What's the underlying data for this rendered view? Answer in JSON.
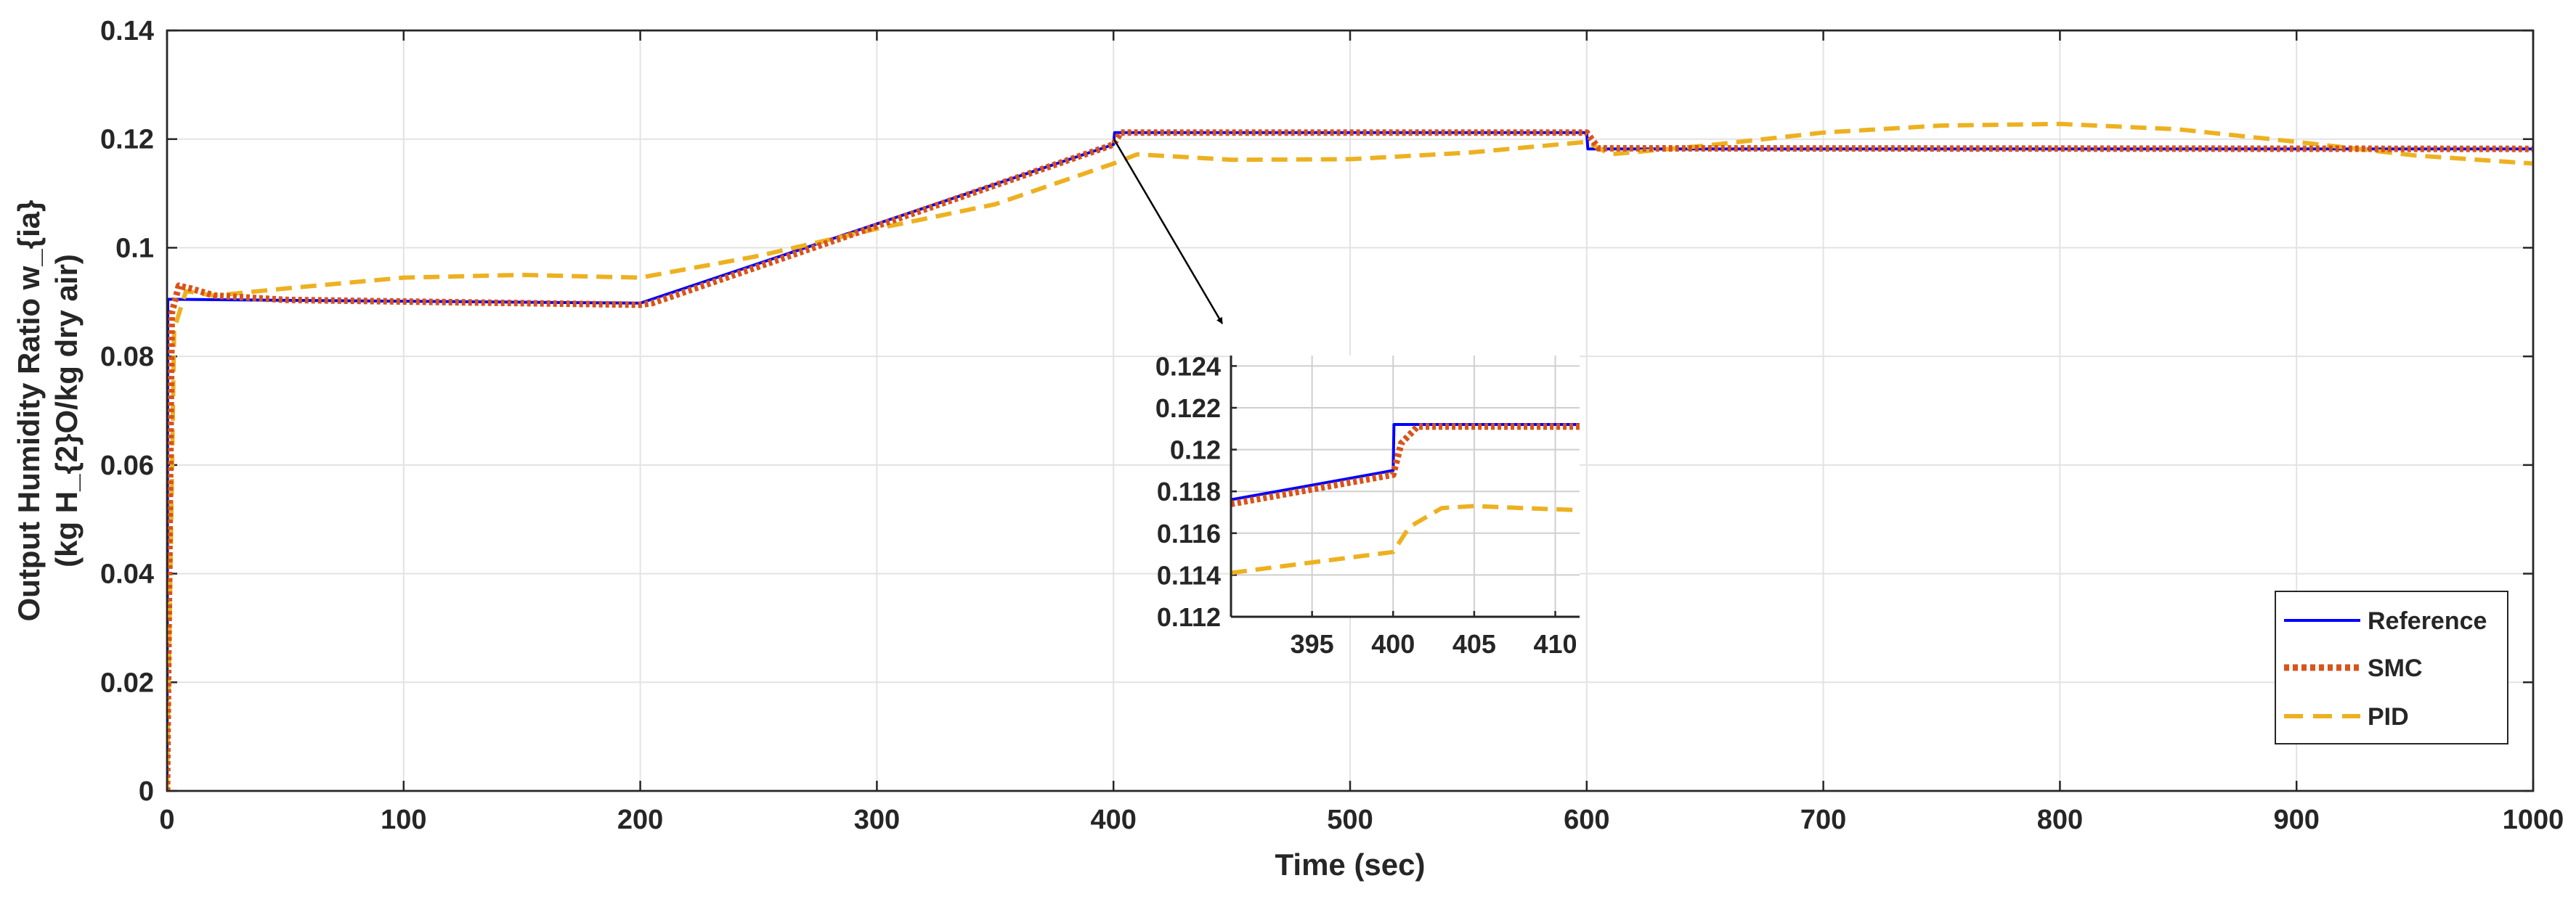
{
  "chart_data": [
    {
      "type": "line",
      "xlabel": "Time (sec)",
      "ylabel_lines": [
        "Output Humidity Ratio w_{ia}",
        "(kg H_{2}O/kg dry air)"
      ],
      "xlim": [
        0,
        1000
      ],
      "ylim": [
        0,
        0.14
      ],
      "xticks": [
        0,
        100,
        200,
        300,
        400,
        500,
        600,
        700,
        800,
        900,
        1000
      ],
      "xtick_labels": [
        "0",
        "100",
        "200",
        "300",
        "400",
        "500",
        "600",
        "700",
        "800",
        "900",
        "1000"
      ],
      "yticks": [
        0,
        0.02,
        0.04,
        0.06,
        0.08,
        0.1,
        0.12,
        0.14
      ],
      "ytick_labels": [
        "0",
        "0.02",
        "0.04",
        "0.06",
        "0.08",
        "0.1",
        "0.12",
        "0.14"
      ],
      "grid": true,
      "legend_position": "bottom-right",
      "series": [
        {
          "name": "Reference",
          "color": "#0000ff",
          "style": "solid",
          "x": [
            0,
            0.3,
            1,
            200,
            400,
            400.5,
            600,
            600.5,
            1000
          ],
          "y": [
            0,
            0.0905,
            0.0905,
            0.0898,
            0.119,
            0.1212,
            0.1212,
            0.1182,
            0.1182
          ]
        },
        {
          "name": "SMC",
          "color": "#d95319",
          "style": "dotted",
          "x": [
            0,
            2,
            5,
            10,
            20,
            50,
            200,
            205,
            400,
            403,
            600,
            605,
            1000
          ],
          "y": [
            0,
            0.088,
            0.093,
            0.0925,
            0.0912,
            0.0904,
            0.0895,
            0.0898,
            0.119,
            0.1212,
            0.1212,
            0.1183,
            0.1182
          ]
        },
        {
          "name": "PID",
          "color": "#edb120",
          "style": "dashed",
          "x": [
            0,
            3,
            8,
            20,
            50,
            100,
            150,
            200,
            250,
            300,
            350,
            400,
            410,
            450,
            500,
            550,
            600,
            610,
            650,
            700,
            750,
            800,
            850,
            900,
            950,
            1000
          ],
          "y": [
            0,
            0.085,
            0.092,
            0.0912,
            0.0925,
            0.0945,
            0.095,
            0.0945,
            0.0985,
            0.1035,
            0.108,
            0.1155,
            0.1172,
            0.1162,
            0.1163,
            0.1175,
            0.1195,
            0.1172,
            0.1188,
            0.1212,
            0.1225,
            0.1228,
            0.1218,
            0.1195,
            0.117,
            0.1155
          ]
        }
      ]
    },
    {
      "type": "line",
      "subplot": "inset",
      "xlim": [
        390,
        411.5
      ],
      "ylim": [
        0.112,
        0.1245
      ],
      "xticks": [
        395,
        400,
        405,
        410
      ],
      "xtick_labels": [
        "395",
        "400",
        "405",
        "410"
      ],
      "yticks": [
        0.112,
        0.114,
        0.116,
        0.118,
        0.12,
        0.122,
        0.124
      ],
      "ytick_labels": [
        "0.112",
        "0.114",
        "0.116",
        "0.118",
        "0.12",
        "0.122",
        "0.124"
      ],
      "grid": true,
      "series": [
        {
          "name": "Reference",
          "color": "#0000ff",
          "style": "solid",
          "x": [
            390,
            400,
            400.05,
            401,
            411.5
          ],
          "y": [
            0.1176,
            0.119,
            0.1212,
            0.1212,
            0.1212
          ]
        },
        {
          "name": "SMC",
          "color": "#d95319",
          "style": "dotted",
          "x": [
            390,
            400,
            400.5,
            401.5,
            411.5
          ],
          "y": [
            0.1174,
            0.1188,
            0.1203,
            0.1211,
            0.1211
          ]
        },
        {
          "name": "PID",
          "color": "#edb120",
          "style": "dashed",
          "x": [
            390,
            400,
            401,
            403,
            405,
            408,
            411.5
          ],
          "y": [
            0.1141,
            0.1151,
            0.1163,
            0.1172,
            0.1173,
            0.1172,
            0.1171
          ]
        }
      ]
    }
  ]
}
